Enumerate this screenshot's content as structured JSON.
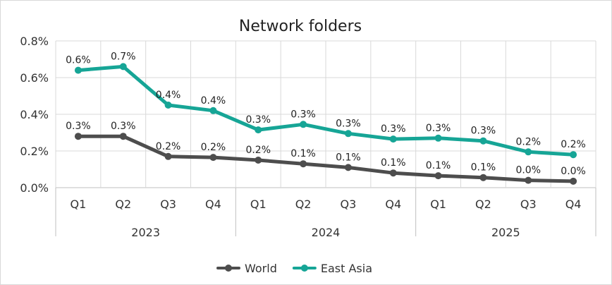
{
  "chart_data": {
    "type": "line",
    "title": "Network folders",
    "xlabel": "",
    "ylabel": "",
    "ylim": [
      0,
      0.8
    ],
    "yticks": [
      "0.0%",
      "0.2%",
      "0.4%",
      "0.6%",
      "0.8%"
    ],
    "y_tick_values": [
      0,
      0.2,
      0.4,
      0.6,
      0.8
    ],
    "categories": [
      "Q1",
      "Q2",
      "Q3",
      "Q4",
      "Q1",
      "Q2",
      "Q3",
      "Q4",
      "Q1",
      "Q2",
      "Q3",
      "Q4"
    ],
    "groups": [
      {
        "label": "2023",
        "count": 4
      },
      {
        "label": "2024",
        "count": 4
      },
      {
        "label": "2025",
        "count": 4
      }
    ],
    "series": [
      {
        "name": "World",
        "color": "#4d4d4d",
        "values": [
          0.28,
          0.28,
          0.17,
          0.165,
          0.15,
          0.13,
          0.11,
          0.08,
          0.065,
          0.055,
          0.04,
          0.035
        ],
        "labels": [
          "0.3%",
          "0.3%",
          "0.2%",
          "0.2%",
          "0.2%",
          "0.1%",
          "0.1%",
          "0.1%",
          "0.1%",
          "0.1%",
          "0.0%",
          "0.0%"
        ]
      },
      {
        "name": "East Asia",
        "color": "#16a596",
        "values": [
          0.64,
          0.66,
          0.45,
          0.42,
          0.315,
          0.345,
          0.295,
          0.265,
          0.27,
          0.255,
          0.195,
          0.18
        ],
        "labels": [
          "0.6%",
          "0.7%",
          "0.4%",
          "0.4%",
          "0.3%",
          "0.3%",
          "0.3%",
          "0.3%",
          "0.3%",
          "0.3%",
          "0.2%",
          "0.2%"
        ]
      }
    ],
    "grid": true,
    "legend": "bottom"
  }
}
